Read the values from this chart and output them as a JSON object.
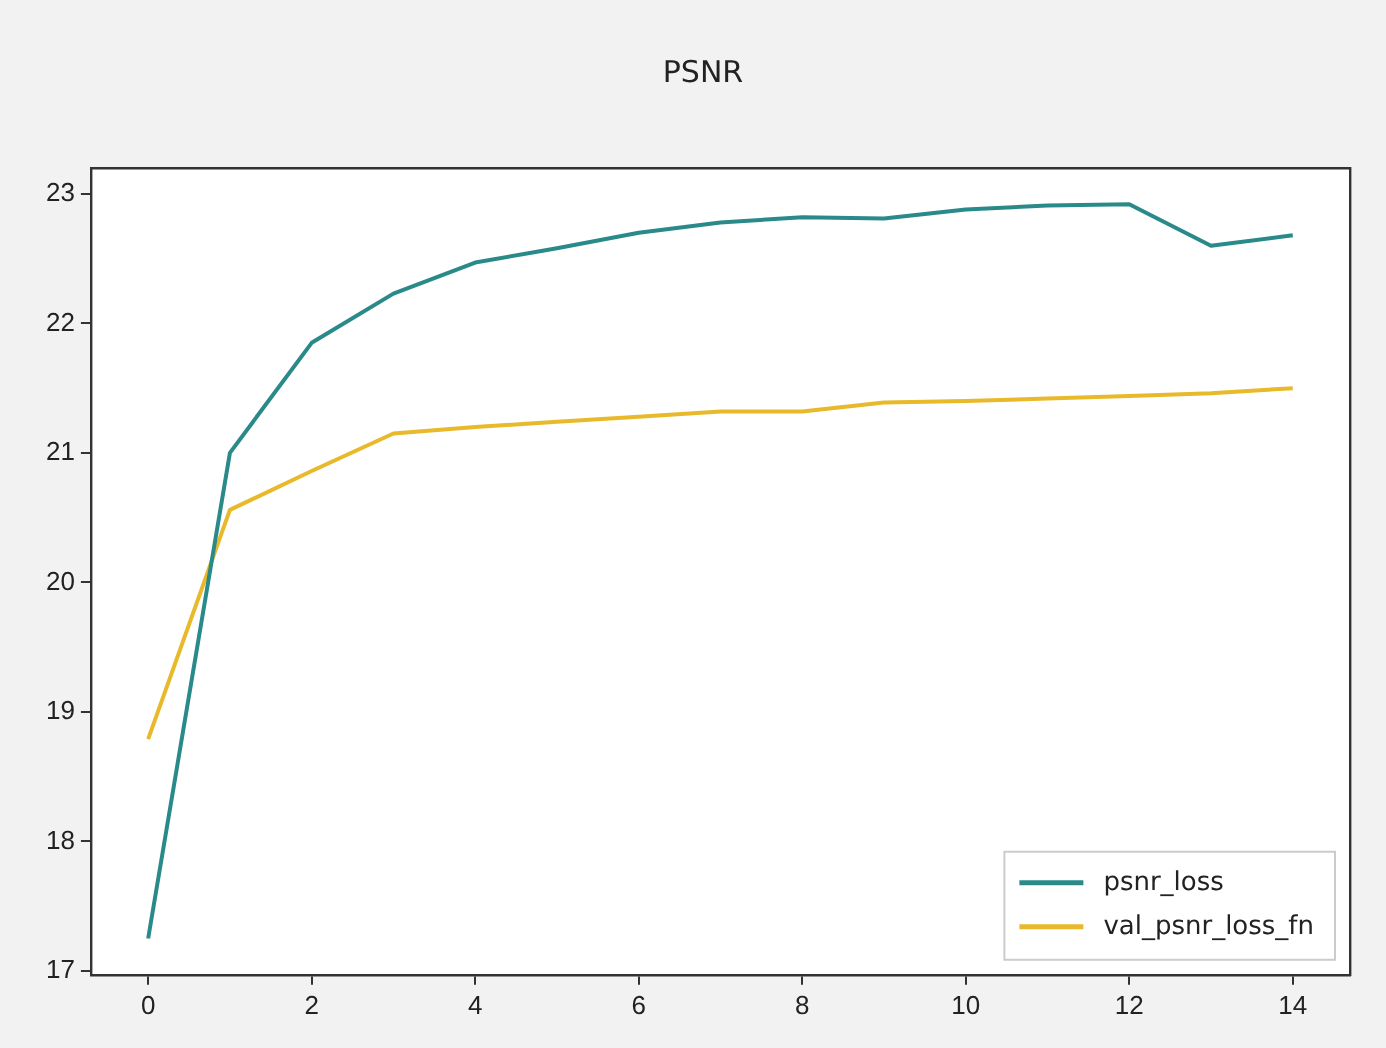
{
  "chart_data": {
    "type": "line",
    "title": "PSNR",
    "x": [
      0,
      1,
      2,
      3,
      4,
      5,
      6,
      7,
      8,
      9,
      10,
      11,
      12,
      13,
      14
    ],
    "xlim": [
      -0.7,
      14.7
    ],
    "xticks": [
      0,
      2,
      4,
      6,
      8,
      10,
      12,
      14
    ],
    "ylim": [
      16.97,
      23.2
    ],
    "yticks": [
      17,
      18,
      19,
      20,
      21,
      22,
      23
    ],
    "series": [
      {
        "name": "psnr_loss",
        "color": "#2a8a8a",
        "values": [
          17.25,
          21.0,
          21.85,
          22.23,
          22.47,
          22.58,
          22.7,
          22.78,
          22.82,
          22.81,
          22.88,
          22.91,
          22.92,
          22.6,
          22.68
        ]
      },
      {
        "name": "val_psnr_loss_fn",
        "color": "#e8b92a",
        "values": [
          18.79,
          20.56,
          20.86,
          21.15,
          21.2,
          21.24,
          21.28,
          21.32,
          21.32,
          21.39,
          21.4,
          21.42,
          21.44,
          21.46,
          21.5
        ]
      }
    ],
    "grid": false,
    "legend": "bottom right",
    "marker": "none",
    "line_style": "solid"
  }
}
